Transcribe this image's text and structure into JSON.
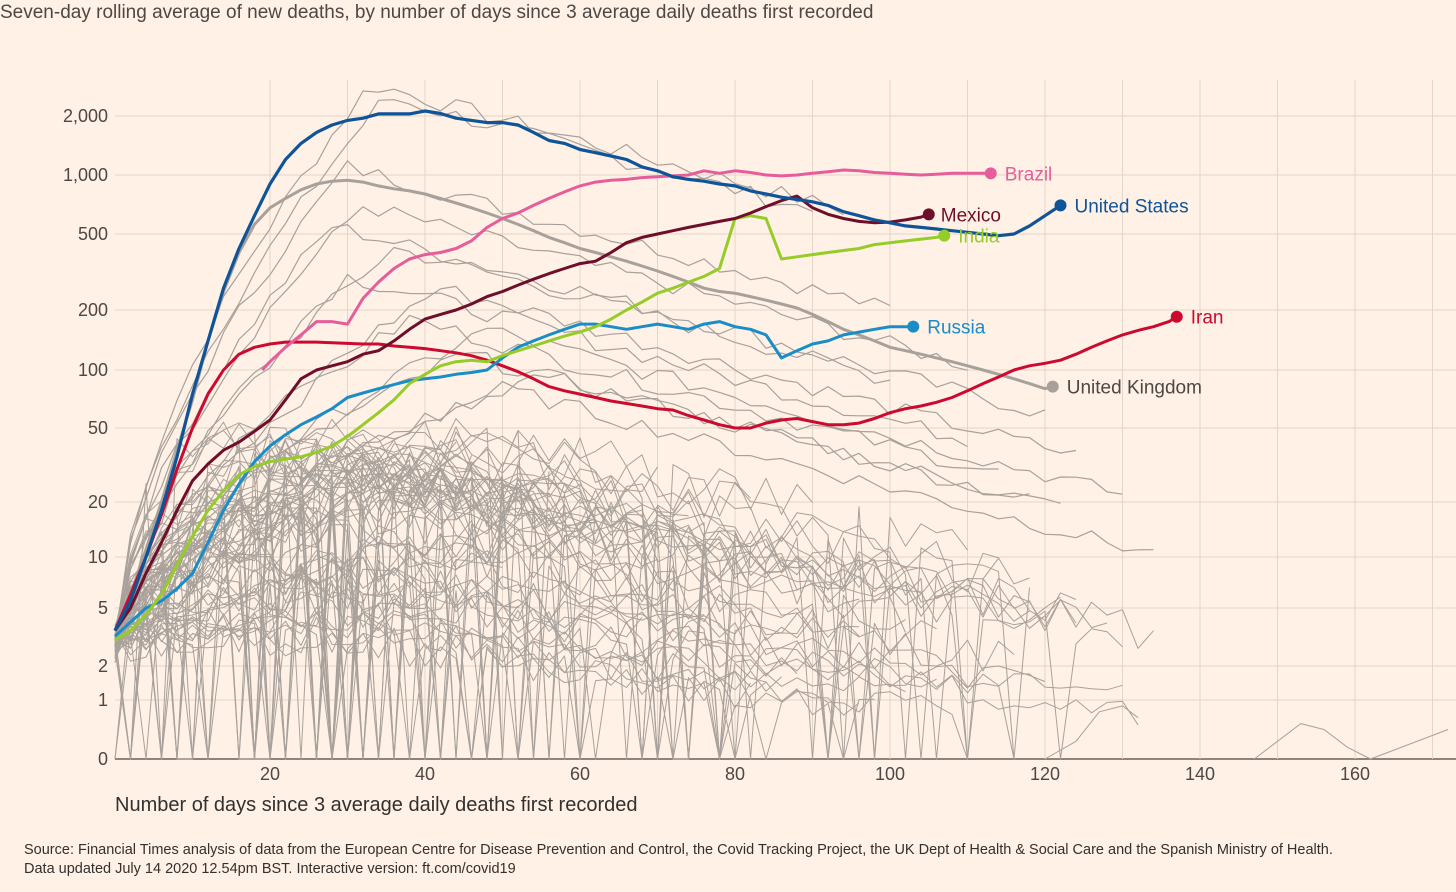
{
  "chart_data": {
    "type": "line",
    "title": "Seven-day rolling average of new deaths, by number of days since 3 average daily deaths first recorded",
    "xlabel": "Number of days since 3 average daily deaths first recorded",
    "ylabel": "",
    "y_scale": "symlog",
    "xlim": [
      0,
      172
    ],
    "ylim": [
      0,
      2900
    ],
    "x_ticks": [
      20,
      40,
      60,
      80,
      100,
      120,
      140,
      160
    ],
    "x_tick_labels": [
      "20",
      "40",
      "60",
      "80",
      "100",
      "120",
      "140",
      "160"
    ],
    "y_ticks": [
      0,
      1,
      2,
      5,
      10,
      20,
      50,
      100,
      200,
      500,
      1000,
      2000
    ],
    "y_tick_labels": [
      "0",
      "1",
      "2",
      "5",
      "10",
      "20",
      "50",
      "100",
      "200",
      "500",
      "1,000",
      "2,000"
    ],
    "grid": true,
    "legend": "direct labels at line ends",
    "series": [
      {
        "name": "United States",
        "color": "#0f5499",
        "width": 3.2,
        "label_at_end": true,
        "x": [
          0,
          2,
          4,
          6,
          8,
          10,
          12,
          14,
          16,
          18,
          20,
          22,
          24,
          26,
          28,
          30,
          32,
          34,
          36,
          38,
          40,
          42,
          44,
          46,
          48,
          50,
          52,
          54,
          56,
          58,
          60,
          62,
          64,
          66,
          68,
          70,
          72,
          74,
          76,
          78,
          80,
          82,
          84,
          86,
          88,
          90,
          92,
          94,
          96,
          98,
          100,
          102,
          104,
          106,
          108,
          110,
          112,
          114,
          116,
          118,
          120,
          122
        ],
        "y": [
          3.5,
          5.5,
          10,
          18,
          35,
          75,
          140,
          260,
          420,
          620,
          900,
          1200,
          1450,
          1650,
          1800,
          1900,
          1950,
          2050,
          2050,
          2050,
          2120,
          2060,
          1950,
          1900,
          1850,
          1850,
          1800,
          1650,
          1500,
          1450,
          1350,
          1300,
          1250,
          1200,
          1100,
          1050,
          980,
          950,
          930,
          900,
          880,
          830,
          800,
          770,
          750,
          730,
          700,
          650,
          620,
          590,
          570,
          550,
          540,
          530,
          520,
          510,
          500,
          490,
          500,
          550,
          620,
          700
        ]
      },
      {
        "name": "Brazil",
        "color": "#e55e9b",
        "width": 3,
        "label_at_end": true,
        "x": [
          19,
          20,
          22,
          24,
          26,
          28,
          30,
          32,
          34,
          36,
          38,
          40,
          42,
          44,
          46,
          48,
          50,
          52,
          54,
          56,
          58,
          60,
          62,
          64,
          66,
          68,
          70,
          72,
          74,
          76,
          78,
          80,
          82,
          84,
          86,
          88,
          90,
          92,
          94,
          96,
          98,
          100,
          102,
          104,
          106,
          108,
          110,
          112,
          113
        ],
        "y": [
          100,
          110,
          130,
          150,
          175,
          175,
          170,
          230,
          280,
          330,
          370,
          390,
          400,
          420,
          460,
          540,
          600,
          640,
          700,
          760,
          820,
          880,
          920,
          940,
          950,
          970,
          980,
          990,
          1000,
          1050,
          1020,
          1050,
          1030,
          1000,
          990,
          1000,
          1020,
          1040,
          1060,
          1050,
          1030,
          1020,
          1010,
          1000,
          1010,
          1020,
          1020,
          1020,
          1020
        ]
      },
      {
        "name": "Mexico",
        "color": "#6e0e2a",
        "width": 3,
        "label_at_end": true,
        "x": [
          0,
          2,
          4,
          6,
          8,
          10,
          12,
          14,
          16,
          18,
          20,
          22,
          24,
          26,
          28,
          30,
          32,
          34,
          36,
          38,
          40,
          42,
          44,
          46,
          48,
          50,
          52,
          54,
          56,
          58,
          60,
          62,
          64,
          66,
          68,
          70,
          72,
          74,
          76,
          78,
          80,
          82,
          84,
          86,
          88,
          90,
          92,
          94,
          96,
          98,
          100,
          102,
          104,
          105
        ],
        "y": [
          3.5,
          5,
          8,
          12,
          18,
          26,
          32,
          38,
          42,
          48,
          55,
          70,
          90,
          100,
          105,
          110,
          120,
          125,
          140,
          160,
          180,
          190,
          200,
          215,
          235,
          250,
          270,
          290,
          310,
          330,
          350,
          360,
          400,
          450,
          480,
          500,
          520,
          540,
          560,
          580,
          600,
          640,
          690,
          740,
          780,
          680,
          630,
          600,
          580,
          570,
          575,
          590,
          610,
          630
        ]
      },
      {
        "name": "India",
        "color": "#96cc28",
        "width": 3,
        "label_at_end": true,
        "x": [
          0,
          2,
          4,
          6,
          8,
          10,
          12,
          14,
          16,
          18,
          20,
          22,
          24,
          26,
          28,
          30,
          32,
          34,
          36,
          38,
          40,
          42,
          44,
          46,
          48,
          50,
          52,
          54,
          56,
          58,
          60,
          62,
          64,
          66,
          68,
          70,
          72,
          74,
          76,
          78,
          80,
          82,
          84,
          86,
          88,
          90,
          92,
          94,
          96,
          98,
          100,
          102,
          104,
          106,
          107
        ],
        "y": [
          3,
          3.5,
          4.5,
          6,
          9,
          13,
          18,
          23,
          28,
          31,
          33,
          34,
          35,
          37,
          40,
          45,
          52,
          60,
          70,
          85,
          95,
          105,
          110,
          112,
          110,
          118,
          125,
          132,
          140,
          148,
          155,
          165,
          180,
          200,
          220,
          245,
          260,
          280,
          300,
          330,
          600,
          620,
          600,
          370,
          380,
          390,
          400,
          410,
          420,
          440,
          450,
          460,
          470,
          480,
          490
        ]
      },
      {
        "name": "Russia",
        "color": "#1a8dc8",
        "width": 3,
        "label_at_end": true,
        "x": [
          0,
          2,
          4,
          6,
          8,
          10,
          12,
          14,
          16,
          18,
          20,
          22,
          24,
          26,
          28,
          30,
          32,
          34,
          36,
          38,
          40,
          42,
          44,
          46,
          48,
          50,
          52,
          54,
          56,
          58,
          60,
          62,
          64,
          66,
          68,
          70,
          72,
          74,
          76,
          78,
          80,
          82,
          84,
          86,
          88,
          90,
          92,
          94,
          96,
          98,
          100,
          102,
          103
        ],
        "y": [
          3.2,
          4,
          5,
          5.5,
          6.5,
          8,
          12,
          18,
          25,
          33,
          40,
          46,
          52,
          57,
          63,
          72,
          76,
          80,
          84,
          88,
          90,
          92,
          95,
          97,
          100,
          115,
          130,
          140,
          150,
          160,
          170,
          170,
          165,
          160,
          165,
          170,
          165,
          160,
          170,
          175,
          165,
          160,
          150,
          115,
          125,
          135,
          140,
          150,
          155,
          160,
          165,
          165,
          165
        ]
      },
      {
        "name": "Iran",
        "color": "#cc0a2f",
        "width": 3,
        "label_at_end": true,
        "x": [
          0,
          2,
          4,
          6,
          8,
          10,
          12,
          14,
          16,
          18,
          20,
          22,
          24,
          26,
          28,
          30,
          32,
          34,
          36,
          38,
          40,
          42,
          44,
          46,
          48,
          50,
          52,
          54,
          56,
          58,
          60,
          62,
          64,
          66,
          68,
          70,
          72,
          74,
          76,
          78,
          80,
          82,
          84,
          86,
          88,
          90,
          92,
          94,
          96,
          98,
          100,
          102,
          104,
          106,
          108,
          110,
          112,
          114,
          116,
          118,
          120,
          122,
          124,
          126,
          128,
          130,
          132,
          134,
          136,
          137
        ],
        "y": [
          3.5,
          6,
          10,
          17,
          30,
          50,
          75,
          100,
          120,
          130,
          135,
          138,
          138,
          138,
          137,
          136,
          135,
          135,
          132,
          130,
          128,
          125,
          122,
          118,
          112,
          105,
          98,
          90,
          82,
          78,
          75,
          72,
          69,
          67,
          65,
          63,
          62,
          58,
          55,
          52,
          50,
          50,
          53,
          55,
          56,
          54,
          52,
          52,
          53,
          56,
          60,
          63,
          65,
          68,
          72,
          78,
          85,
          92,
          100,
          105,
          108,
          112,
          120,
          130,
          140,
          150,
          158,
          165,
          175,
          185
        ]
      },
      {
        "name": "United Kingdom",
        "color": "#a8a19b",
        "width": 3,
        "label_at_end": true,
        "x": [
          0,
          2,
          4,
          6,
          8,
          10,
          12,
          14,
          16,
          18,
          20,
          22,
          24,
          26,
          28,
          30,
          32,
          34,
          36,
          38,
          40,
          42,
          44,
          46,
          48,
          50,
          52,
          54,
          56,
          58,
          60,
          62,
          64,
          66,
          68,
          70,
          72,
          74,
          76,
          78,
          80,
          82,
          84,
          86,
          88,
          90,
          92,
          94,
          96,
          98,
          100,
          102,
          104,
          106,
          108,
          110,
          112,
          114,
          116,
          118,
          120,
          121
        ],
        "y": [
          3.5,
          6,
          11,
          20,
          38,
          70,
          140,
          250,
          400,
          560,
          680,
          760,
          840,
          900,
          930,
          940,
          920,
          880,
          850,
          830,
          800,
          760,
          720,
          680,
          640,
          600,
          560,
          520,
          480,
          450,
          420,
          400,
          380,
          360,
          340,
          320,
          300,
          280,
          260,
          250,
          245,
          235,
          225,
          215,
          205,
          190,
          175,
          160,
          150,
          140,
          130,
          125,
          120,
          115,
          110,
          105,
          100,
          95,
          90,
          85,
          80,
          82
        ]
      }
    ]
  }
}
